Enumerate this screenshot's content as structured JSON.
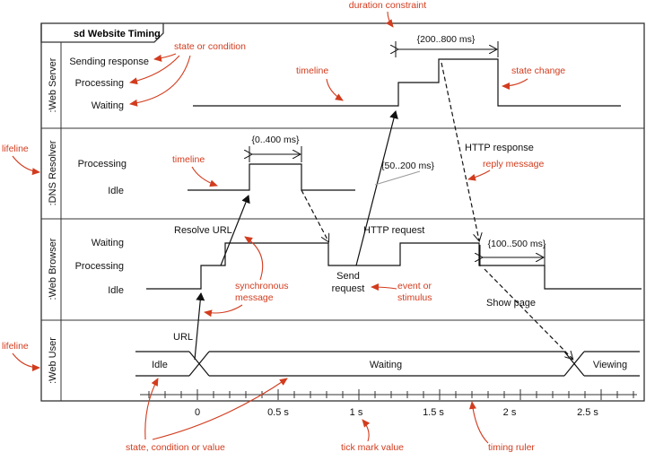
{
  "frame": {
    "title": "sd Website Timing"
  },
  "lifelines": {
    "server": ":Web Server",
    "resolver": ":DNS Resolver",
    "browser": ":Web Browser",
    "user": ":Web User"
  },
  "states": {
    "server": [
      "Sending response",
      "Processing",
      "Waiting"
    ],
    "resolver": [
      "Processing",
      "Idle"
    ],
    "browser": [
      "Waiting",
      "Processing",
      "Idle"
    ],
    "user_values": [
      "Idle",
      "Waiting",
      "Viewing"
    ]
  },
  "messages": {
    "url": "URL",
    "resolve_url": "Resolve URL",
    "http_request": "HTTP request",
    "http_response": "HTTP response",
    "send_request": [
      "Send",
      "request"
    ],
    "show_page": "Show page"
  },
  "constraints": {
    "resolver": "{0..400 ms}",
    "server": "{200..800 ms}",
    "request": "{50..200 ms}",
    "browser": "{100..500 ms}"
  },
  "ticks": [
    "0",
    "0.5 s",
    "1 s",
    "1.5 s",
    "2 s",
    "2.5 s"
  ],
  "annotations": {
    "duration_constraint": "duration constraint",
    "state_or_condition": "state or condition",
    "timeline_top": "timeline",
    "state_change": "state change",
    "lifeline_top": "lifeline",
    "timeline_mid": "timeline",
    "reply_message": "reply message",
    "synchronous_message": [
      "synchronous",
      "message"
    ],
    "event_or_stimulus": [
      "event or",
      "stimulus"
    ],
    "lifeline_bottom": "lifeline",
    "state_condition_value": "state, condition or value",
    "tick_mark_value": "tick mark value",
    "timing_ruler": "timing ruler"
  },
  "colors": {
    "annotation": "#d23c1e",
    "line": "#111111",
    "frame": "#333333"
  }
}
